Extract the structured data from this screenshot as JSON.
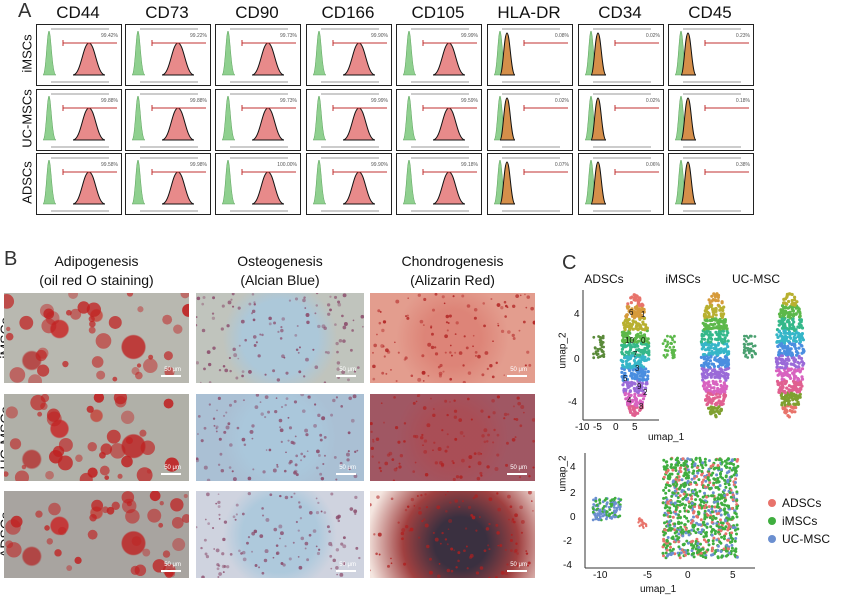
{
  "panel_a": {
    "letter": "A",
    "markers": [
      "CD44",
      "CD73",
      "CD90",
      "CD166",
      "CD105",
      "HLA-DR",
      "CD34",
      "CD45"
    ],
    "rows": [
      "iMSCs",
      "UC-MSCs",
      "ADSCs"
    ],
    "percentages": [
      [
        "99.42%",
        "99.22%",
        "99.73%",
        "99.90%",
        "99.99%",
        "0.08%",
        "0.02%",
        "0.23%"
      ],
      [
        "99.88%",
        "99.88%",
        "99.73%",
        "99.99%",
        "99.59%",
        "0.02%",
        "0.02%",
        "0.18%"
      ],
      [
        "99.58%",
        "99.98%",
        "100.00%",
        "99.90%",
        "99.18%",
        "0.07%",
        "0.06%",
        "0.38%"
      ]
    ]
  },
  "panel_b": {
    "letter": "B",
    "columns": [
      {
        "line1": "Adipogenesis",
        "line2": "(oil red O staining)"
      },
      {
        "line1": "Osteogenesis",
        "line2": "(Alcian Blue)"
      },
      {
        "line1": "Chondrogenesis",
        "line2": "(Alizarin Red)"
      }
    ],
    "rows": [
      "iMSCs",
      "UC-MSCs",
      "ADSCs"
    ],
    "scale_label": "50 μm"
  },
  "panel_c": {
    "letter": "C",
    "split_titles": [
      "ADSCs",
      "iMSCs",
      "UC-MSC"
    ],
    "xlabel": "umap_1",
    "ylabel": "umap_2",
    "top_xticks": [
      "-10",
      "-5",
      "0",
      "5"
    ],
    "top_yticks": [
      "4",
      "0",
      "-4"
    ],
    "bottom_xticks": [
      "-10",
      "-5",
      "0",
      "5"
    ],
    "bottom_yticks": [
      "4",
      "2",
      "0",
      "-2",
      "-4"
    ],
    "cluster_labels": [
      "6",
      "1",
      "10",
      "0",
      "7",
      "3",
      "5",
      "9",
      "2",
      "4",
      "8"
    ],
    "legend": [
      {
        "label": "ADSCs",
        "color": "#e8736b"
      },
      {
        "label": "iMSCs",
        "color": "#3fae3f"
      },
      {
        "label": "UC-MSC",
        "color": "#6b8fd0"
      }
    ]
  }
}
